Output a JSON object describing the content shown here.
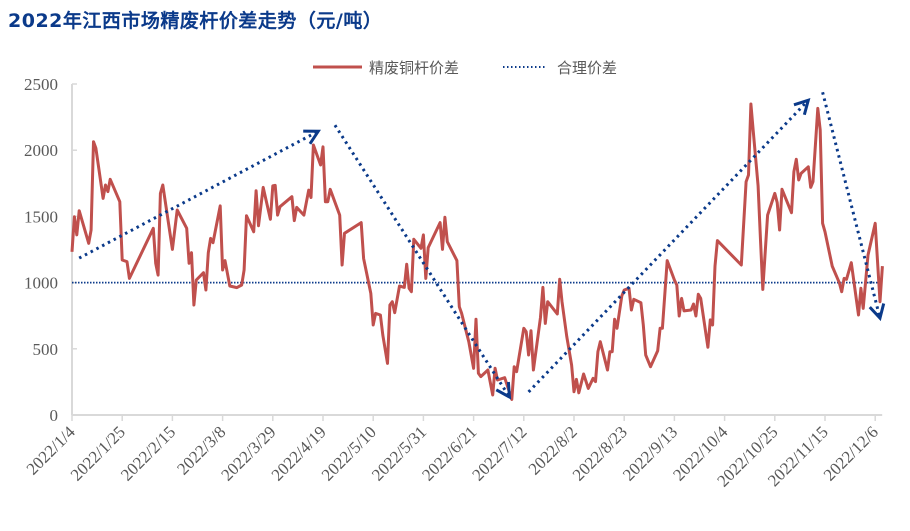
{
  "chart_data": {
    "type": "line",
    "title": "2022年江西市场精废杆价差走势（元/吨）",
    "xlabel": "",
    "ylabel": "",
    "ylim": [
      0,
      2500
    ],
    "yticks": [
      "0",
      "500",
      "1000",
      "1500",
      "2000",
      "2500"
    ],
    "ytick_values": [
      0,
      500,
      1000,
      1500,
      2000,
      2500
    ],
    "x_unit": "days since 2022/1/4",
    "xlim": [
      0,
      336
    ],
    "xticks": [
      "2022/1/4",
      "2022/1/25",
      "2022/2/15",
      "2022/3/8",
      "2022/3/29",
      "2022/4/19",
      "2022/5/10",
      "2022/5/31",
      "2022/6/21",
      "2022/7/12",
      "2022/8/2",
      "2022/8/23",
      "2022/9/13",
      "2022/10/4",
      "2022/10/25",
      "2022/11/15",
      "2022/12/6"
    ],
    "xtick_step_days": 21,
    "legend_position": "top-right",
    "grid": false,
    "series": [
      {
        "name": "精废铜杆价差",
        "color": "#c0504d",
        "style": "solid",
        "points": [
          [
            0,
            1233
          ],
          [
            1,
            1498
          ],
          [
            2,
            1360
          ],
          [
            3,
            1543
          ],
          [
            7,
            1297
          ],
          [
            8,
            1397
          ],
          [
            9,
            2064
          ],
          [
            10,
            2014
          ],
          [
            13,
            1636
          ],
          [
            14,
            1737
          ],
          [
            15,
            1687
          ],
          [
            16,
            1780
          ],
          [
            20,
            1611
          ],
          [
            21,
            1171
          ],
          [
            23,
            1158
          ],
          [
            24,
            1032
          ],
          [
            34,
            1410
          ],
          [
            35,
            1146
          ],
          [
            36,
            1057
          ],
          [
            37,
            1674
          ],
          [
            38,
            1737
          ],
          [
            42,
            1251
          ],
          [
            44,
            1548
          ],
          [
            48,
            1410
          ],
          [
            49,
            1146
          ],
          [
            50,
            1226
          ],
          [
            51,
            831
          ],
          [
            52,
            1020
          ],
          [
            55,
            1075
          ],
          [
            56,
            944
          ],
          [
            57,
            1226
          ],
          [
            58,
            1334
          ],
          [
            59,
            1301
          ],
          [
            62,
            1579
          ],
          [
            63,
            1095
          ],
          [
            64,
            1166
          ],
          [
            66,
            974
          ],
          [
            69,
            962
          ],
          [
            71,
            982
          ],
          [
            72,
            1095
          ],
          [
            73,
            1505
          ],
          [
            76,
            1384
          ],
          [
            77,
            1694
          ],
          [
            78,
            1430
          ],
          [
            80,
            1719
          ],
          [
            83,
            1478
          ],
          [
            84,
            1730
          ],
          [
            85,
            1734
          ],
          [
            86,
            1510
          ],
          [
            87,
            1573
          ],
          [
            92,
            1649
          ],
          [
            93,
            1468
          ],
          [
            94,
            1568
          ],
          [
            97,
            1510
          ],
          [
            99,
            1699
          ],
          [
            100,
            1643
          ],
          [
            101,
            2039
          ],
          [
            104,
            1888
          ],
          [
            105,
            2026
          ],
          [
            106,
            1611
          ],
          [
            107,
            1611
          ],
          [
            108,
            1705
          ],
          [
            112,
            1510
          ],
          [
            113,
            1133
          ],
          [
            114,
            1372
          ],
          [
            121,
            1453
          ],
          [
            122,
            1183
          ],
          [
            125,
            919
          ],
          [
            126,
            680
          ],
          [
            127,
            767
          ],
          [
            129,
            755
          ],
          [
            130,
            604
          ],
          [
            132,
            390
          ],
          [
            133,
            831
          ],
          [
            134,
            856
          ],
          [
            135,
            773
          ],
          [
            137,
            974
          ],
          [
            139,
            964
          ],
          [
            140,
            1138
          ],
          [
            141,
            957
          ],
          [
            142,
            931
          ],
          [
            143,
            1327
          ],
          [
            146,
            1259
          ],
          [
            147,
            1360
          ],
          [
            148,
            1032
          ],
          [
            149,
            1264
          ],
          [
            154,
            1453
          ],
          [
            155,
            1251
          ],
          [
            156,
            1493
          ],
          [
            157,
            1309
          ],
          [
            161,
            1166
          ],
          [
            162,
            818
          ],
          [
            163,
            768
          ],
          [
            166,
            554
          ],
          [
            168,
            353
          ],
          [
            169,
            723
          ],
          [
            170,
            315
          ],
          [
            171,
            290
          ],
          [
            174,
            340
          ],
          [
            176,
            151
          ],
          [
            177,
            353
          ],
          [
            178,
            264
          ],
          [
            181,
            282
          ],
          [
            184,
            118
          ],
          [
            185,
            365
          ],
          [
            186,
            327
          ],
          [
            189,
            655
          ],
          [
            190,
            629
          ],
          [
            191,
            453
          ],
          [
            192,
            637
          ],
          [
            193,
            340
          ],
          [
            196,
            738
          ],
          [
            197,
            964
          ],
          [
            198,
            692
          ],
          [
            199,
            856
          ],
          [
            203,
            763
          ],
          [
            204,
            1025
          ],
          [
            205,
            856
          ],
          [
            207,
            591
          ],
          [
            209,
            378
          ],
          [
            210,
            176
          ],
          [
            211,
            269
          ],
          [
            212,
            168
          ],
          [
            214,
            310
          ],
          [
            216,
            201
          ],
          [
            218,
            277
          ],
          [
            219,
            252
          ],
          [
            220,
            478
          ],
          [
            221,
            554
          ],
          [
            224,
            340
          ],
          [
            225,
            478
          ],
          [
            226,
            478
          ],
          [
            227,
            723
          ],
          [
            228,
            655
          ],
          [
            230,
            899
          ],
          [
            231,
            944
          ],
          [
            233,
            957
          ],
          [
            234,
            793
          ],
          [
            235,
            874
          ],
          [
            238,
            848
          ],
          [
            239,
            680
          ],
          [
            240,
            453
          ],
          [
            242,
            365
          ],
          [
            245,
            486
          ],
          [
            246,
            655
          ],
          [
            247,
            655
          ],
          [
            249,
            1166
          ],
          [
            252,
            1020
          ],
          [
            253,
            982
          ],
          [
            254,
            748
          ],
          [
            255,
            881
          ],
          [
            256,
            786
          ],
          [
            259,
            793
          ],
          [
            260,
            838
          ],
          [
            261,
            748
          ],
          [
            262,
            912
          ],
          [
            263,
            881
          ],
          [
            266,
            511
          ],
          [
            267,
            718
          ],
          [
            268,
            680
          ],
          [
            269,
            1125
          ],
          [
            270,
            1317
          ],
          [
            280,
            1133
          ],
          [
            282,
            1762
          ],
          [
            283,
            1813
          ],
          [
            284,
            2349
          ],
          [
            285,
            2140
          ],
          [
            287,
            1730
          ],
          [
            288,
            1322
          ],
          [
            289,
            949
          ],
          [
            291,
            1510
          ],
          [
            294,
            1674
          ],
          [
            295,
            1604
          ],
          [
            296,
            1397
          ],
          [
            297,
            1705
          ],
          [
            301,
            1528
          ],
          [
            302,
            1838
          ],
          [
            303,
            1931
          ],
          [
            304,
            1775
          ],
          [
            305,
            1825
          ],
          [
            308,
            1875
          ],
          [
            309,
            1719
          ],
          [
            310,
            1762
          ],
          [
            312,
            2316
          ],
          [
            313,
            2153
          ],
          [
            314,
            1448
          ],
          [
            315,
            1384
          ],
          [
            318,
            1125
          ],
          [
            321,
            999
          ],
          [
            322,
            931
          ],
          [
            323,
            1032
          ],
          [
            324,
            1025
          ],
          [
            326,
            1150
          ],
          [
            329,
            755
          ],
          [
            330,
            957
          ],
          [
            331,
            805
          ],
          [
            333,
            1208
          ],
          [
            336,
            1448
          ],
          [
            338,
            856
          ],
          [
            339,
            1125
          ]
        ]
      },
      {
        "name": "合理价差",
        "color": "#0b3a8a",
        "style": "dotted",
        "value": 1000
      }
    ],
    "annotations": [
      {
        "type": "trend-arrow",
        "from": [
          3,
          1185
        ],
        "to": [
          103,
          2143
        ],
        "color": "#0b3a8a"
      },
      {
        "type": "trend-arrow",
        "from": [
          110,
          2189
        ],
        "to": [
          183,
          136
        ],
        "color": "#0b3a8a"
      },
      {
        "type": "trend-arrow",
        "from": [
          191,
          174
        ],
        "to": [
          308,
          2377
        ],
        "color": "#0b3a8a"
      },
      {
        "type": "trend-arrow",
        "from": [
          314,
          2438
        ],
        "to": [
          338,
          732
        ],
        "color": "#0b3a8a"
      }
    ]
  }
}
